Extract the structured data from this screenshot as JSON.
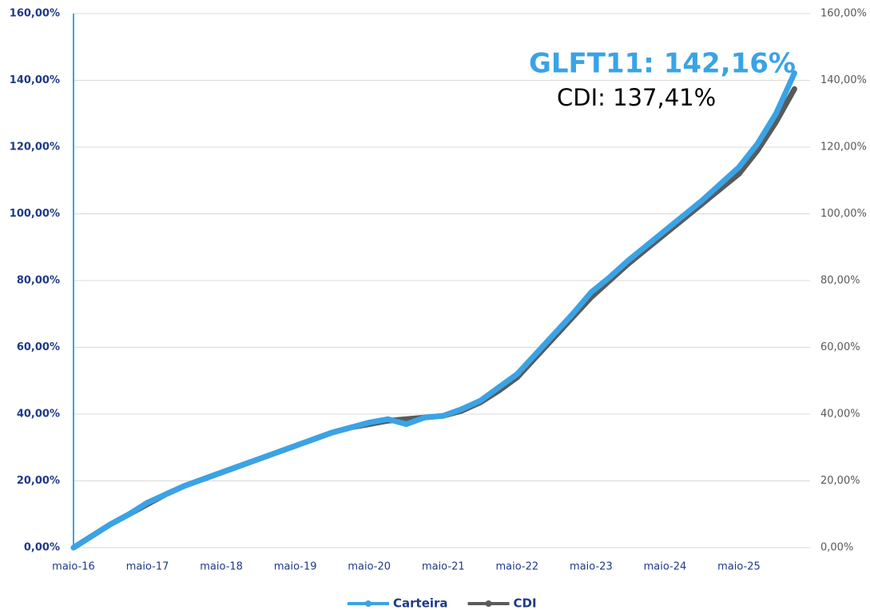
{
  "chart_data": {
    "type": "line",
    "annotations": [
      "GLFT11: 142,16%",
      "CDI: 137,41%"
    ],
    "categories": [
      "maio-16",
      null,
      null,
      null,
      "maio-17",
      null,
      null,
      null,
      "maio-18",
      null,
      null,
      null,
      "maio-19",
      null,
      null,
      null,
      "maio-20",
      null,
      null,
      null,
      "maio-21",
      null,
      null,
      null,
      "maio-22",
      null,
      null,
      null,
      "maio-23",
      null,
      null,
      null,
      "maio-24",
      null,
      null,
      null,
      "maio-25",
      null,
      null,
      null
    ],
    "series": [
      {
        "name": "Carteira",
        "color": "#3aa3e6",
        "values": [
          0,
          3.5,
          7,
          10,
          13.5,
          16,
          18.5,
          20.5,
          22.5,
          24.5,
          26.5,
          28.5,
          30.5,
          32.5,
          34.5,
          36,
          37.5,
          38.5,
          37,
          39,
          39.5,
          41.5,
          44,
          48,
          52,
          58,
          64,
          70,
          76.5,
          81,
          86,
          90.5,
          95,
          99.5,
          104,
          109,
          114,
          121,
          130,
          142.16
        ]
      },
      {
        "name": "CDI",
        "color": "#5a5a5a",
        "values": [
          0,
          3.5,
          7,
          10,
          13,
          16,
          18.5,
          20.5,
          22.5,
          24.5,
          26.5,
          28.5,
          30.5,
          32.5,
          34.5,
          36,
          37,
          38,
          38.5,
          39,
          39.5,
          41,
          43.5,
          47,
          51,
          57,
          63,
          69,
          75,
          80,
          85,
          89.5,
          94,
          98.5,
          103,
          107.5,
          112,
          119,
          127.5,
          137.41
        ]
      }
    ],
    "ylim": [
      0,
      160
    ],
    "yticks": [
      {
        "value": 0,
        "label": "0,00%"
      },
      {
        "value": 20,
        "label": "20,00%"
      },
      {
        "value": 40,
        "label": "40,00%"
      },
      {
        "value": 60,
        "label": "60,00%"
      },
      {
        "value": 80,
        "label": "80,00%"
      },
      {
        "value": 100,
        "label": "100,00%"
      },
      {
        "value": 120,
        "label": "120,00%"
      },
      {
        "value": 140,
        "label": "140,00%"
      },
      {
        "value": 160,
        "label": "160,00%"
      }
    ],
    "y2lim": [
      0,
      160
    ],
    "y2ticks": [
      {
        "value": 0,
        "label": "0,00%"
      },
      {
        "value": 20,
        "label": "20,00%"
      },
      {
        "value": 40,
        "label": "40,00%"
      },
      {
        "value": 60,
        "label": "60,00%"
      },
      {
        "value": 80,
        "label": "80,00%"
      },
      {
        "value": 100,
        "label": "100,00%"
      },
      {
        "value": 120,
        "label": "120,00%"
      },
      {
        "value": 140,
        "label": "140,00%"
      },
      {
        "value": 160,
        "label": "160,00%"
      }
    ],
    "grid": true,
    "legend": "bottom"
  }
}
